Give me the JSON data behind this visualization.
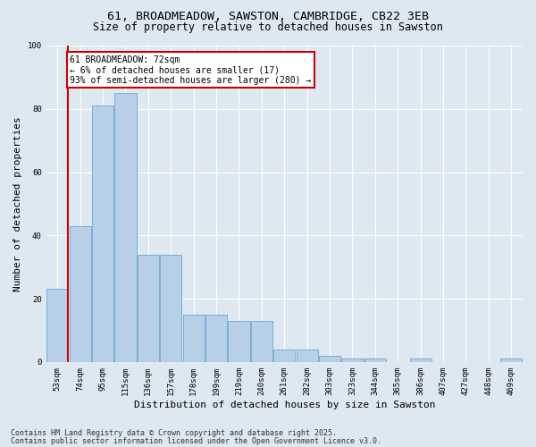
{
  "title1": "61, BROADMEADOW, SAWSTON, CAMBRIDGE, CB22 3EB",
  "title2": "Size of property relative to detached houses in Sawston",
  "xlabel": "Distribution of detached houses by size in Sawston",
  "ylabel": "Number of detached properties",
  "categories": [
    "53sqm",
    "74sqm",
    "95sqm",
    "115sqm",
    "136sqm",
    "157sqm",
    "178sqm",
    "199sqm",
    "219sqm",
    "240sqm",
    "261sqm",
    "282sqm",
    "303sqm",
    "323sqm",
    "344sqm",
    "365sqm",
    "386sqm",
    "407sqm",
    "427sqm",
    "448sqm",
    "469sqm"
  ],
  "values": [
    23,
    43,
    81,
    85,
    34,
    34,
    15,
    15,
    13,
    13,
    4,
    4,
    2,
    1,
    1,
    0,
    1,
    0,
    0,
    0,
    1
  ],
  "bar_color": "#b8cfe8",
  "bar_edge_color": "#7aaed4",
  "vline_color": "#cc0000",
  "annotation_line1": "61 BROADMEADOW: 72sqm",
  "annotation_line2": "← 6% of detached houses are smaller (17)",
  "annotation_line3": "93% of semi-detached houses are larger (280) →",
  "annotation_box_color": "#ffffff",
  "annotation_box_edge": "#cc0000",
  "ylim": [
    0,
    100
  ],
  "yticks": [
    0,
    20,
    40,
    60,
    80,
    100
  ],
  "background_color": "#dde8f0",
  "plot_bg_color": "#dde8f0",
  "footer1": "Contains HM Land Registry data © Crown copyright and database right 2025.",
  "footer2": "Contains public sector information licensed under the Open Government Licence v3.0.",
  "title_fontsize": 9.5,
  "subtitle_fontsize": 8.5,
  "tick_fontsize": 6.5,
  "label_fontsize": 8,
  "annotation_fontsize": 7,
  "footer_fontsize": 6
}
